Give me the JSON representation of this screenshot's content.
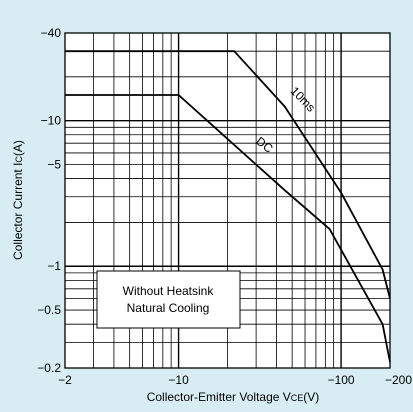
{
  "chart_data": {
    "type": "line",
    "title": "",
    "xlabel": "Collector-Emitter Voltage V",
    "xlabel_sub": "CE",
    "xlabel_unit": "(V)",
    "ylabel": "Collector Current I",
    "ylabel_sub": "C",
    "ylabel_unit": "(A)",
    "x_scale": "log",
    "y_scale": "log",
    "xlim": [
      2,
      200
    ],
    "ylim": [
      0.2,
      40
    ],
    "x_ticks": [
      {
        "value": 2,
        "label": "−2"
      },
      {
        "value": 10,
        "label": "−10"
      },
      {
        "value": 100,
        "label": "−100"
      },
      {
        "value": 200,
        "label": "−200"
      }
    ],
    "y_ticks": [
      {
        "value": 40,
        "label": "−40"
      },
      {
        "value": 10,
        "label": "−10"
      },
      {
        "value": 5,
        "label": "−5"
      },
      {
        "value": 1,
        "label": "−1"
      },
      {
        "value": 0.5,
        "label": "−0.5"
      },
      {
        "value": 0.2,
        "label": "−0.2"
      }
    ],
    "grid": true,
    "series": [
      {
        "name": "10ms",
        "x": [
          2,
          22,
          45,
          100,
          180,
          200
        ],
        "y": [
          30,
          30,
          12.5,
          3.2,
          0.95,
          0.6
        ]
      },
      {
        "name": "DC",
        "x": [
          2,
          10,
          45,
          85,
          180,
          200
        ],
        "y": [
          15,
          15,
          3.33,
          1.8,
          0.4,
          0.22
        ]
      }
    ],
    "annotation": {
      "line1": "Without Heatsink",
      "line2": "Natural Cooling"
    }
  },
  "colors": {
    "background": "#d7edf3",
    "plot_area": "#ffffff",
    "lines": "#000000"
  }
}
